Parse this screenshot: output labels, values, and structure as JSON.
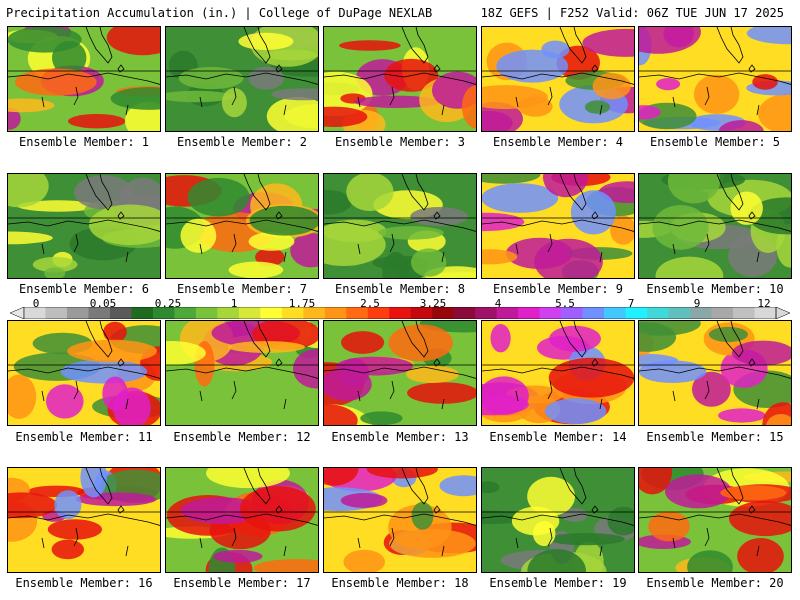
{
  "header": {
    "left": "Precipitation Accumulation (in.) | College of DuPage NEXLAB",
    "right": "18Z GEFS | F252 Valid: 06Z TUE JUN 17 2025"
  },
  "panels": [
    {
      "label": "Ensemble Member: 1",
      "theme": "warm"
    },
    {
      "label": "Ensemble Member: 2",
      "theme": "green"
    },
    {
      "label": "Ensemble Member: 3",
      "theme": "warm"
    },
    {
      "label": "Ensemble Member: 4",
      "theme": "hot"
    },
    {
      "label": "Ensemble Member: 5",
      "theme": "hot"
    },
    {
      "label": "Ensemble Member: 6",
      "theme": "green"
    },
    {
      "label": "Ensemble Member: 7",
      "theme": "warm"
    },
    {
      "label": "Ensemble Member: 8",
      "theme": "green"
    },
    {
      "label": "Ensemble Member: 9",
      "theme": "hot"
    },
    {
      "label": "Ensemble Member: 10",
      "theme": "green"
    },
    {
      "label": "Ensemble Member: 11",
      "theme": "hot"
    },
    {
      "label": "Ensemble Member: 12",
      "theme": "warm"
    },
    {
      "label": "Ensemble Member: 13",
      "theme": "warm"
    },
    {
      "label": "Ensemble Member: 14",
      "theme": "hot"
    },
    {
      "label": "Ensemble Member: 15",
      "theme": "hot"
    },
    {
      "label": "Ensemble Member: 16",
      "theme": "hot"
    },
    {
      "label": "Ensemble Member: 17",
      "theme": "warm"
    },
    {
      "label": "Ensemble Member: 18",
      "theme": "hot"
    },
    {
      "label": "Ensemble Member: 19",
      "theme": "green"
    },
    {
      "label": "Ensemble Member: 20",
      "theme": "warm"
    }
  ],
  "colorbar": {
    "tick_labels": [
      "0",
      "0.05",
      "0.25",
      "1",
      "1.75",
      "2.5",
      "3.25",
      "4",
      "5.5",
      "7",
      "9",
      "12"
    ],
    "colors": [
      "#d9d9d9",
      "#bdbdbd",
      "#9a9a9a",
      "#7a7a7a",
      "#5a5a5a",
      "#1f6b1f",
      "#2f8a2f",
      "#4fa83a",
      "#7ac23a",
      "#a6d63a",
      "#d8e83a",
      "#ffff33",
      "#ffdd22",
      "#ffb81c",
      "#ff9416",
      "#ff6a12",
      "#ff3e10",
      "#e8120e",
      "#c4080c",
      "#98060a",
      "#8a0a3a",
      "#a0126a",
      "#c01a9a",
      "#e020c8",
      "#d040f0",
      "#a060ff",
      "#7090ff",
      "#40c8ff",
      "#20f0ff",
      "#40d8d8",
      "#60c0c0",
      "#8aa8a8",
      "#a8a8a8",
      "#c0c0c0",
      "#d8d8d8"
    ]
  }
}
